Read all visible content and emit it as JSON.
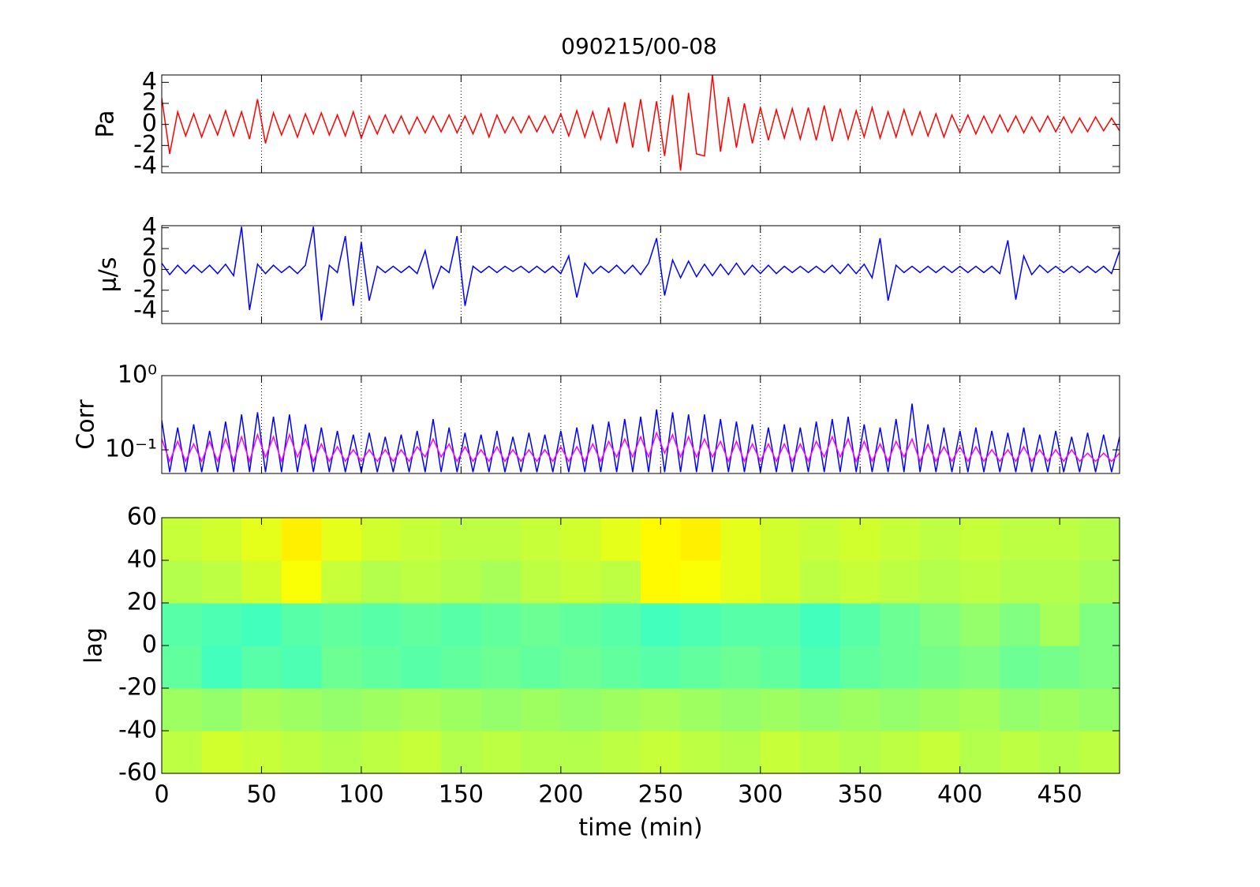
{
  "chart_data": [
    {
      "type": "line",
      "title": "090215/00-08",
      "ylabel": "Pa",
      "xlim": [
        0,
        480
      ],
      "xticks": [
        0,
        50,
        100,
        150,
        200,
        250,
        300,
        350,
        400,
        450
      ],
      "show_xticklabels": false,
      "ylim": [
        -4.6,
        4.7
      ],
      "yticks": [
        -4,
        -2,
        0,
        2,
        4
      ],
      "grid": "x",
      "x": [
        0,
        4,
        8,
        12,
        16,
        20,
        24,
        28,
        32,
        36,
        40,
        44,
        48,
        52,
        56,
        60,
        64,
        68,
        72,
        76,
        80,
        84,
        88,
        92,
        96,
        100,
        104,
        108,
        112,
        116,
        120,
        124,
        128,
        132,
        136,
        140,
        144,
        148,
        152,
        156,
        160,
        164,
        168,
        172,
        176,
        180,
        184,
        188,
        192,
        196,
        200,
        204,
        208,
        212,
        216,
        220,
        224,
        228,
        232,
        236,
        240,
        244,
        248,
        252,
        256,
        260,
        264,
        268,
        272,
        276,
        280,
        284,
        288,
        292,
        296,
        300,
        304,
        308,
        312,
        316,
        320,
        324,
        328,
        332,
        336,
        340,
        344,
        348,
        352,
        356,
        360,
        364,
        368,
        372,
        376,
        380,
        384,
        388,
        392,
        396,
        400,
        404,
        408,
        412,
        416,
        420,
        424,
        428,
        432,
        436,
        440,
        444,
        448,
        452,
        456,
        460,
        464,
        468,
        472,
        476,
        480
      ],
      "series": [
        {
          "color": "#ff0000",
          "values": [
            2.5,
            -2.8,
            1.2,
            -1.1,
            1.0,
            -1.2,
            0.9,
            -1.0,
            1.3,
            -1.1,
            1.2,
            -1.4,
            2.4,
            -1.8,
            1.1,
            -1.0,
            0.9,
            -1.2,
            1.0,
            -0.9,
            1.1,
            -1.0,
            0.9,
            -1.1,
            1.2,
            -1.3,
            0.8,
            -0.9,
            0.9,
            -0.8,
            0.8,
            -0.9,
            0.7,
            -0.8,
            0.8,
            -0.7,
            0.9,
            -0.8,
            0.8,
            -0.9,
            1.0,
            -1.2,
            0.9,
            -0.8,
            0.7,
            -0.8,
            0.8,
            -0.7,
            0.8,
            -0.8,
            1.0,
            -1.1,
            1.3,
            -1.2,
            1.2,
            -1.4,
            1.6,
            -1.8,
            2.1,
            -2.2,
            2.4,
            -2.6,
            2.2,
            -3.0,
            2.8,
            -4.4,
            3.0,
            -2.8,
            -3.0,
            4.7,
            -2.6,
            2.6,
            -2.2,
            2.0,
            -1.8,
            1.6,
            -1.5,
            1.4,
            -1.3,
            1.5,
            -1.4,
            1.6,
            -1.5,
            1.8,
            -1.6,
            1.5,
            -1.4,
            1.3,
            -1.2,
            1.6,
            -1.3,
            1.2,
            -1.2,
            1.4,
            -1.0,
            1.2,
            -1.1,
            1.0,
            -1.2,
            0.9,
            -0.8,
            0.9,
            -0.9,
            0.8,
            -0.8,
            0.9,
            -0.7,
            0.8,
            -0.8,
            0.7,
            -0.7,
            0.8,
            -0.7,
            0.7,
            -0.8,
            0.6,
            -0.7,
            0.7,
            -0.6,
            0.6,
            -0.6
          ]
        }
      ]
    },
    {
      "type": "line",
      "ylabel": "μ/s",
      "xlim": [
        0,
        480
      ],
      "xticks": [
        0,
        50,
        100,
        150,
        200,
        250,
        300,
        350,
        400,
        450
      ],
      "show_xticklabels": false,
      "ylim": [
        -5.2,
        4.2
      ],
      "yticks": [
        -4,
        -2,
        0,
        2,
        4
      ],
      "grid": "x",
      "x": [
        0,
        4,
        8,
        12,
        16,
        20,
        24,
        28,
        32,
        36,
        40,
        44,
        48,
        52,
        56,
        60,
        64,
        68,
        72,
        76,
        80,
        84,
        88,
        92,
        96,
        100,
        104,
        108,
        112,
        116,
        120,
        124,
        128,
        132,
        136,
        140,
        144,
        148,
        152,
        156,
        160,
        164,
        168,
        172,
        176,
        180,
        184,
        188,
        192,
        196,
        200,
        204,
        208,
        212,
        216,
        220,
        224,
        228,
        232,
        236,
        240,
        244,
        248,
        252,
        256,
        260,
        264,
        268,
        272,
        276,
        280,
        284,
        288,
        292,
        296,
        300,
        304,
        308,
        312,
        316,
        320,
        324,
        328,
        332,
        336,
        340,
        344,
        348,
        352,
        356,
        360,
        364,
        368,
        372,
        376,
        380,
        384,
        388,
        392,
        396,
        400,
        404,
        408,
        412,
        416,
        420,
        424,
        428,
        432,
        436,
        440,
        444,
        448,
        452,
        456,
        460,
        464,
        468,
        472,
        476,
        480
      ],
      "series": [
        {
          "color": "#0000ff",
          "values": [
            0.6,
            -0.5,
            0.4,
            -0.4,
            0.4,
            -0.3,
            0.4,
            -0.4,
            0.5,
            -0.6,
            4.1,
            -3.9,
            0.5,
            -0.4,
            0.4,
            -0.3,
            0.3,
            -0.4,
            0.4,
            4.1,
            -4.9,
            0.4,
            -0.3,
            3.2,
            -3.5,
            2.6,
            -3.0,
            0.3,
            -0.3,
            0.3,
            -0.3,
            0.3,
            -0.4,
            1.8,
            -1.8,
            0.3,
            -0.3,
            3.2,
            -3.5,
            0.3,
            -0.3,
            0.3,
            -0.3,
            0.3,
            -0.2,
            0.3,
            -0.3,
            0.3,
            -0.3,
            0.3,
            -0.4,
            1.3,
            -2.7,
            0.6,
            -0.4,
            0.3,
            -0.3,
            0.4,
            -0.4,
            0.4,
            -0.5,
            0.6,
            3.0,
            -2.5,
            0.9,
            -0.8,
            0.8,
            -0.7,
            0.5,
            -0.6,
            0.5,
            -0.5,
            0.6,
            -0.5,
            0.4,
            -0.4,
            0.4,
            -0.4,
            0.3,
            -0.3,
            0.3,
            -0.3,
            0.3,
            -0.3,
            0.4,
            -0.4,
            0.5,
            -0.4,
            0.5,
            -0.8,
            3.0,
            -3.0,
            0.4,
            -0.3,
            0.3,
            -0.3,
            0.3,
            -0.3,
            0.3,
            -0.3,
            0.3,
            -0.3,
            0.3,
            -0.3,
            0.3,
            -0.4,
            2.8,
            -2.9,
            1.3,
            -0.5,
            0.4,
            -0.3,
            0.3,
            -0.3,
            0.3,
            -0.3,
            0.3,
            -0.3,
            0.3,
            -0.4,
            1.8
          ]
        }
      ]
    },
    {
      "type": "line",
      "ylabel": "Corr",
      "yscale": "log",
      "xlim": [
        0,
        480
      ],
      "xticks": [
        0,
        50,
        100,
        150,
        200,
        250,
        300,
        350,
        400,
        450
      ],
      "show_xticklabels": false,
      "ylim": [
        0.048,
        1
      ],
      "yticks": [
        {
          "value": 0.1,
          "label": "10⁻¹"
        },
        {
          "value": 1,
          "label": "10⁰"
        }
      ],
      "grid": "x",
      "x": [
        0,
        4,
        8,
        12,
        16,
        20,
        24,
        28,
        32,
        36,
        40,
        44,
        48,
        52,
        56,
        60,
        64,
        68,
        72,
        76,
        80,
        84,
        88,
        92,
        96,
        100,
        104,
        108,
        112,
        116,
        120,
        124,
        128,
        132,
        136,
        140,
        144,
        148,
        152,
        156,
        160,
        164,
        168,
        172,
        176,
        180,
        184,
        188,
        192,
        196,
        200,
        204,
        208,
        212,
        216,
        220,
        224,
        228,
        232,
        236,
        240,
        244,
        248,
        252,
        256,
        260,
        264,
        268,
        272,
        276,
        280,
        284,
        288,
        292,
        296,
        300,
        304,
        308,
        312,
        316,
        320,
        324,
        328,
        332,
        336,
        340,
        344,
        348,
        352,
        356,
        360,
        364,
        368,
        372,
        376,
        380,
        384,
        388,
        392,
        396,
        400,
        404,
        408,
        412,
        416,
        420,
        424,
        428,
        432,
        436,
        440,
        444,
        448,
        452,
        456,
        460,
        464,
        468,
        472,
        476,
        480
      ],
      "series": [
        {
          "color": "#0000ff",
          "values": [
            0.25,
            0.05,
            0.2,
            0.05,
            0.22,
            0.05,
            0.18,
            0.05,
            0.24,
            0.05,
            0.3,
            0.05,
            0.32,
            0.05,
            0.28,
            0.05,
            0.3,
            0.05,
            0.22,
            0.05,
            0.2,
            0.05,
            0.18,
            0.05,
            0.16,
            0.05,
            0.17,
            0.05,
            0.15,
            0.05,
            0.16,
            0.05,
            0.18,
            0.05,
            0.26,
            0.05,
            0.2,
            0.05,
            0.17,
            0.05,
            0.16,
            0.05,
            0.18,
            0.05,
            0.15,
            0.05,
            0.17,
            0.05,
            0.16,
            0.05,
            0.18,
            0.05,
            0.2,
            0.05,
            0.22,
            0.05,
            0.24,
            0.05,
            0.26,
            0.05,
            0.28,
            0.05,
            0.35,
            0.05,
            0.32,
            0.05,
            0.3,
            0.05,
            0.3,
            0.05,
            0.26,
            0.05,
            0.24,
            0.05,
            0.22,
            0.05,
            0.2,
            0.05,
            0.22,
            0.05,
            0.2,
            0.05,
            0.24,
            0.05,
            0.26,
            0.05,
            0.28,
            0.05,
            0.22,
            0.05,
            0.2,
            0.05,
            0.26,
            0.05,
            0.42,
            0.05,
            0.22,
            0.05,
            0.2,
            0.05,
            0.18,
            0.05,
            0.2,
            0.05,
            0.18,
            0.05,
            0.17,
            0.05,
            0.2,
            0.05,
            0.16,
            0.05,
            0.18,
            0.05,
            0.15,
            0.05,
            0.17,
            0.05,
            0.16,
            0.05,
            0.15
          ]
        },
        {
          "color": "#ff00ff",
          "values": [
            0.14,
            0.07,
            0.13,
            0.07,
            0.12,
            0.07,
            0.13,
            0.07,
            0.14,
            0.07,
            0.15,
            0.07,
            0.16,
            0.08,
            0.15,
            0.07,
            0.16,
            0.08,
            0.14,
            0.07,
            0.12,
            0.07,
            0.11,
            0.07,
            0.1,
            0.07,
            0.1,
            0.07,
            0.1,
            0.07,
            0.1,
            0.07,
            0.11,
            0.08,
            0.14,
            0.08,
            0.12,
            0.07,
            0.11,
            0.07,
            0.1,
            0.07,
            0.11,
            0.07,
            0.1,
            0.07,
            0.1,
            0.07,
            0.1,
            0.07,
            0.11,
            0.07,
            0.11,
            0.07,
            0.12,
            0.07,
            0.13,
            0.08,
            0.14,
            0.08,
            0.15,
            0.08,
            0.17,
            0.09,
            0.16,
            0.08,
            0.15,
            0.08,
            0.14,
            0.08,
            0.13,
            0.07,
            0.13,
            0.07,
            0.12,
            0.07,
            0.12,
            0.07,
            0.12,
            0.07,
            0.12,
            0.07,
            0.13,
            0.08,
            0.15,
            0.08,
            0.14,
            0.07,
            0.13,
            0.07,
            0.12,
            0.07,
            0.13,
            0.08,
            0.14,
            0.07,
            0.12,
            0.07,
            0.11,
            0.07,
            0.11,
            0.07,
            0.11,
            0.07,
            0.1,
            0.07,
            0.1,
            0.07,
            0.11,
            0.07,
            0.1,
            0.07,
            0.1,
            0.07,
            0.1,
            0.07,
            0.09,
            0.07,
            0.09,
            0.07,
            0.09
          ]
        }
      ]
    },
    {
      "type": "heatmap",
      "ylabel": "lag",
      "xlabel": "time (min)",
      "colormap": "jet",
      "zlim": [
        0,
        1
      ],
      "xlim": [
        0,
        480
      ],
      "xticks": [
        0,
        50,
        100,
        150,
        200,
        250,
        300,
        350,
        400,
        450
      ],
      "show_xticklabels": true,
      "ylim": [
        -60,
        60
      ],
      "yticks": [
        -60,
        -40,
        -20,
        0,
        20,
        40,
        60
      ],
      "z": [
        [
          0.56,
          0.58,
          0.57,
          0.56,
          0.55,
          0.56,
          0.57,
          0.55,
          0.56,
          0.55,
          0.55,
          0.56,
          0.57,
          0.56,
          0.55,
          0.57,
          0.56,
          0.55,
          0.56,
          0.57,
          0.55,
          0.56,
          0.55,
          0.56
        ],
        [
          0.53,
          0.52,
          0.54,
          0.53,
          0.52,
          0.53,
          0.54,
          0.53,
          0.52,
          0.53,
          0.52,
          0.53,
          0.54,
          0.53,
          0.52,
          0.53,
          0.52,
          0.53,
          0.52,
          0.53,
          0.54,
          0.52,
          0.53,
          0.52
        ],
        [
          0.47,
          0.44,
          0.46,
          0.45,
          0.48,
          0.47,
          0.46,
          0.47,
          0.48,
          0.47,
          0.48,
          0.47,
          0.46,
          0.47,
          0.48,
          0.47,
          0.45,
          0.47,
          0.48,
          0.49,
          0.5,
          0.48,
          0.49,
          0.5
        ],
        [
          0.46,
          0.45,
          0.44,
          0.46,
          0.47,
          0.46,
          0.47,
          0.46,
          0.47,
          0.48,
          0.47,
          0.46,
          0.44,
          0.45,
          0.46,
          0.46,
          0.44,
          0.46,
          0.48,
          0.5,
          0.52,
          0.5,
          0.54,
          0.5
        ],
        [
          0.55,
          0.56,
          0.58,
          0.62,
          0.57,
          0.55,
          0.56,
          0.55,
          0.54,
          0.56,
          0.57,
          0.56,
          0.63,
          0.62,
          0.6,
          0.58,
          0.56,
          0.57,
          0.56,
          0.55,
          0.56,
          0.55,
          0.55,
          0.54
        ],
        [
          0.57,
          0.58,
          0.6,
          0.64,
          0.6,
          0.58,
          0.57,
          0.56,
          0.56,
          0.57,
          0.58,
          0.6,
          0.63,
          0.64,
          0.6,
          0.58,
          0.57,
          0.58,
          0.57,
          0.56,
          0.57,
          0.56,
          0.56,
          0.55
        ]
      ]
    }
  ]
}
